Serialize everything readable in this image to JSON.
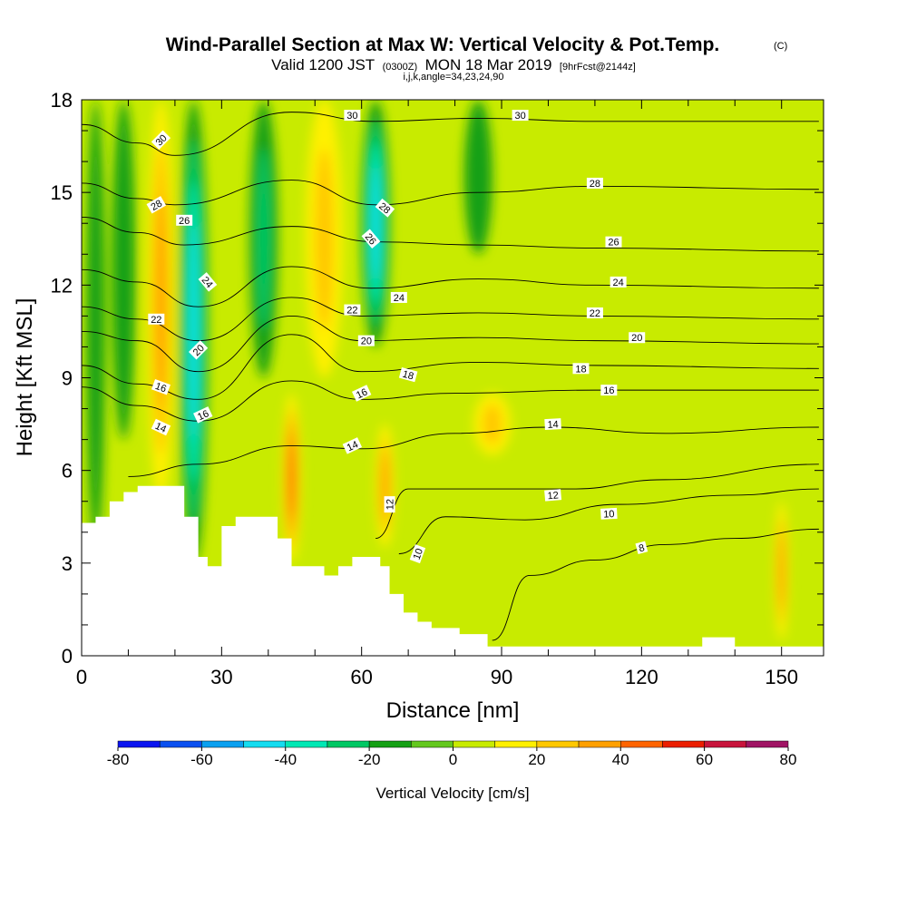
{
  "title": {
    "main": "Wind-Parallel Section at Max W: Vertical Velocity & Pot.Temp.",
    "copyright": "(C)",
    "valid_prefix": "Valid 1200 JST",
    "valid_z": "(0300Z)",
    "valid_date": "MON 18 Mar 2019",
    "forecast": "[9hrFcst@2144z]",
    "indices": "i,j,k,angle=34,23,24,90"
  },
  "colors": {
    "terrain": "#ffffff",
    "contour": "#000000",
    "background": "#ffffff"
  },
  "chart_data": {
    "type": "heatmap",
    "xlabel": "Distance [nm]",
    "ylabel": "Height [Kft MSL]",
    "xlim": [
      0,
      159
    ],
    "ylim": [
      0,
      18
    ],
    "x_ticks": [
      "0",
      "30",
      "60",
      "90",
      "120",
      "150"
    ],
    "y_ticks": [
      "0",
      "3",
      "6",
      "9",
      "12",
      "15",
      "18"
    ],
    "colorbar": {
      "title": "Vertical Velocity [cm/s]",
      "tick_labels": [
        "-80",
        "-60",
        "-40",
        "-20",
        "0",
        "20",
        "40",
        "60",
        "80"
      ],
      "bounds": [
        -80,
        80
      ],
      "bins": [
        {
          "min": -80,
          "max": -70,
          "color": "#0a14f0"
        },
        {
          "min": -70,
          "max": -60,
          "color": "#0a50f0"
        },
        {
          "min": -60,
          "max": -50,
          "color": "#0aa0f0"
        },
        {
          "min": -50,
          "max": -40,
          "color": "#14dcf0"
        },
        {
          "min": -40,
          "max": -30,
          "color": "#00e8b4"
        },
        {
          "min": -30,
          "max": -20,
          "color": "#00c864"
        },
        {
          "min": -20,
          "max": -10,
          "color": "#14a014"
        },
        {
          "min": -10,
          "max": 0,
          "color": "#64c81e"
        },
        {
          "min": 0,
          "max": 10,
          "color": "#c8eb00"
        },
        {
          "min": 10,
          "max": 20,
          "color": "#fff000"
        },
        {
          "min": 20,
          "max": 30,
          "color": "#ffc800"
        },
        {
          "min": 30,
          "max": 40,
          "color": "#ffa000"
        },
        {
          "min": 40,
          "max": 50,
          "color": "#ff6400"
        },
        {
          "min": 50,
          "max": 60,
          "color": "#eb1e00"
        },
        {
          "min": 60,
          "max": 70,
          "color": "#c8143c"
        },
        {
          "min": 70,
          "max": 80,
          "color": "#a01464"
        }
      ]
    },
    "regions": [
      {
        "name": "downdraft-west-1",
        "x": 3,
        "y": [
          3.5,
          18
        ],
        "w": -18,
        "width": 2
      },
      {
        "name": "downdraft-west-2",
        "x": 9,
        "y": [
          7,
          18
        ],
        "w": -16,
        "width": 2.5
      },
      {
        "name": "updraft-west",
        "x": 17,
        "y": [
          5,
          18
        ],
        "w": 32,
        "width": 3
      },
      {
        "name": "downdraft-band-1",
        "x": 24,
        "y": [
          3,
          18
        ],
        "w": -45,
        "width": 3
      },
      {
        "name": "downdraft-band-2",
        "x": 39,
        "y": [
          9,
          18
        ],
        "w": -22,
        "width": 3
      },
      {
        "name": "updraft-mid",
        "x": 52,
        "y": [
          9,
          18
        ],
        "w": 22,
        "width": 4
      },
      {
        "name": "downdraft-band-3",
        "x": 63,
        "y": [
          10,
          18
        ],
        "w": -48,
        "width": 3
      },
      {
        "name": "downdraft-band-4",
        "x": 85,
        "y": [
          13,
          18
        ],
        "w": -15,
        "width": 3
      },
      {
        "name": "updraft-core-1",
        "x": 45,
        "y": [
          3,
          8.5
        ],
        "w": 46,
        "width": 2
      },
      {
        "name": "updraft-core-2",
        "x": 65,
        "y": [
          3.5,
          7.5
        ],
        "w": 38,
        "width": 2
      },
      {
        "name": "updraft-east",
        "x": 150,
        "y": [
          0.5,
          5
        ],
        "w": 35,
        "width": 1.5
      },
      {
        "name": "updraft-wave",
        "x": 88,
        "y": [
          6.5,
          8.5
        ],
        "w": 22,
        "width": 4
      }
    ],
    "contours": [
      {
        "level": 8,
        "points": [
          [
            88,
            0.5
          ],
          [
            96,
            2.6
          ],
          [
            110,
            3.1
          ],
          [
            125,
            3.6
          ],
          [
            140,
            3.8
          ],
          [
            158,
            4.1
          ]
        ]
      },
      {
        "level": 10,
        "points": [
          [
            68,
            3.3
          ],
          [
            78,
            4.5
          ],
          [
            95,
            4.4
          ],
          [
            115,
            4.9
          ],
          [
            140,
            5.2
          ],
          [
            158,
            5.4
          ]
        ]
      },
      {
        "level": 12,
        "points": [
          [
            63,
            3.8
          ],
          [
            70,
            5.4
          ],
          [
            85,
            5.4
          ],
          [
            105,
            5.4
          ],
          [
            125,
            5.7
          ],
          [
            158,
            6.2
          ]
        ]
      },
      {
        "level": 14,
        "points": [
          [
            10,
            5.8
          ],
          [
            25,
            6.2
          ],
          [
            45,
            6.8
          ],
          [
            60,
            6.7
          ],
          [
            80,
            7.2
          ],
          [
            100,
            7.4
          ],
          [
            125,
            7.2
          ],
          [
            158,
            7.4
          ]
        ]
      },
      {
        "level": 16,
        "points": [
          [
            0,
            8.7
          ],
          [
            12,
            8.1
          ],
          [
            25,
            7.6
          ],
          [
            45,
            8.9
          ],
          [
            60,
            8.3
          ],
          [
            80,
            8.5
          ],
          [
            110,
            8.6
          ],
          [
            158,
            8.6
          ]
        ]
      },
      {
        "level": 18,
        "points": [
          [
            0,
            9.4
          ],
          [
            12,
            8.8
          ],
          [
            25,
            8.3
          ],
          [
            45,
            10.4
          ],
          [
            60,
            9.2
          ],
          [
            85,
            9.5
          ],
          [
            110,
            9.4
          ],
          [
            158,
            9.3
          ]
        ]
      },
      {
        "level": 20,
        "points": [
          [
            0,
            10.5
          ],
          [
            12,
            10.2
          ],
          [
            25,
            9.2
          ],
          [
            45,
            11
          ],
          [
            60,
            10.2
          ],
          [
            85,
            10.3
          ],
          [
            110,
            10.2
          ],
          [
            158,
            10.1
          ]
        ]
      },
      {
        "level": 22,
        "points": [
          [
            0,
            11.3
          ],
          [
            12,
            10.9
          ],
          [
            25,
            10.2
          ],
          [
            45,
            11.6
          ],
          [
            60,
            11
          ],
          [
            85,
            11.1
          ],
          [
            110,
            11
          ],
          [
            158,
            10.9
          ]
        ]
      },
      {
        "level": 24,
        "points": [
          [
            0,
            12.5
          ],
          [
            12,
            12.1
          ],
          [
            25,
            11.3
          ],
          [
            45,
            12.6
          ],
          [
            62,
            11.9
          ],
          [
            85,
            12.2
          ],
          [
            110,
            12
          ],
          [
            158,
            11.9
          ]
        ]
      },
      {
        "level": 26,
        "points": [
          [
            0,
            14.2
          ],
          [
            12,
            13.7
          ],
          [
            22,
            13.3
          ],
          [
            45,
            13.9
          ],
          [
            63,
            13.4
          ],
          [
            85,
            13.3
          ],
          [
            110,
            13.2
          ],
          [
            158,
            13.1
          ]
        ]
      },
      {
        "level": 28,
        "points": [
          [
            0,
            15.3
          ],
          [
            12,
            14.8
          ],
          [
            20,
            14.6
          ],
          [
            45,
            15.4
          ],
          [
            63,
            14.6
          ],
          [
            85,
            15
          ],
          [
            110,
            15.2
          ],
          [
            158,
            15.1
          ]
        ]
      },
      {
        "level": 30,
        "points": [
          [
            0,
            17.2
          ],
          [
            12,
            16.6
          ],
          [
            20,
            16.2
          ],
          [
            45,
            17.6
          ],
          [
            63,
            17.3
          ],
          [
            85,
            17.4
          ],
          [
            110,
            17.3
          ],
          [
            158,
            17.3
          ]
        ]
      }
    ],
    "contour_labels": [
      {
        "text": "8",
        "x": 120,
        "y": 3.5,
        "angle": -15
      },
      {
        "text": "10",
        "x": 72,
        "y": 3.3,
        "angle": -70
      },
      {
        "text": "10",
        "x": 113,
        "y": 4.6,
        "angle": -3
      },
      {
        "text": "12",
        "x": 66,
        "y": 4.9,
        "angle": -90
      },
      {
        "text": "12",
        "x": 101,
        "y": 5.2,
        "angle": -5
      },
      {
        "text": "14",
        "x": 17,
        "y": 7.4,
        "angle": 25
      },
      {
        "text": "14",
        "x": 58,
        "y": 6.8,
        "angle": -25
      },
      {
        "text": "14",
        "x": 101,
        "y": 7.5,
        "angle": -3
      },
      {
        "text": "16",
        "x": 17,
        "y": 8.7,
        "angle": 20
      },
      {
        "text": "16",
        "x": 26,
        "y": 7.8,
        "angle": -25
      },
      {
        "text": "16",
        "x": 60,
        "y": 8.5,
        "angle": -25
      },
      {
        "text": "16",
        "x": 113,
        "y": 8.6,
        "angle": 0
      },
      {
        "text": "18",
        "x": 70,
        "y": 9.1,
        "angle": 15
      },
      {
        "text": "18",
        "x": 107,
        "y": 9.3,
        "angle": 0
      },
      {
        "text": "20",
        "x": 25,
        "y": 9.9,
        "angle": -45
      },
      {
        "text": "20",
        "x": 61,
        "y": 10.2,
        "angle": 0
      },
      {
        "text": "20",
        "x": 119,
        "y": 10.3,
        "angle": 0
      },
      {
        "text": "22",
        "x": 16,
        "y": 10.9,
        "angle": 0
      },
      {
        "text": "22",
        "x": 58,
        "y": 11.2,
        "angle": 0
      },
      {
        "text": "22",
        "x": 110,
        "y": 11.1,
        "angle": 0
      },
      {
        "text": "24",
        "x": 27,
        "y": 12.1,
        "angle": 50
      },
      {
        "text": "24",
        "x": 68,
        "y": 11.6,
        "angle": 0
      },
      {
        "text": "24",
        "x": 115,
        "y": 12.1,
        "angle": 0
      },
      {
        "text": "26",
        "x": 22,
        "y": 14.1,
        "angle": 0
      },
      {
        "text": "26",
        "x": 62,
        "y": 13.5,
        "angle": 50
      },
      {
        "text": "26",
        "x": 114,
        "y": 13.4,
        "angle": 0
      },
      {
        "text": "28",
        "x": 16,
        "y": 14.6,
        "angle": -30
      },
      {
        "text": "28",
        "x": 65,
        "y": 14.5,
        "angle": 40
      },
      {
        "text": "28",
        "x": 110,
        "y": 15.3,
        "angle": 0
      },
      {
        "text": "30",
        "x": 17,
        "y": 16.7,
        "angle": -45
      },
      {
        "text": "30",
        "x": 58,
        "y": 17.5,
        "angle": 0
      },
      {
        "text": "30",
        "x": 94,
        "y": 17.5,
        "angle": 0
      }
    ],
    "terrain": [
      [
        0,
        4.3
      ],
      [
        3,
        4.3
      ],
      [
        3,
        4.5
      ],
      [
        6,
        4.5
      ],
      [
        6,
        5
      ],
      [
        9,
        5
      ],
      [
        9,
        5.3
      ],
      [
        12,
        5.3
      ],
      [
        12,
        5.5
      ],
      [
        22,
        5.5
      ],
      [
        22,
        4.5
      ],
      [
        25,
        4.5
      ],
      [
        25,
        3.2
      ],
      [
        27,
        3.2
      ],
      [
        27,
        2.9
      ],
      [
        30,
        2.9
      ],
      [
        30,
        4.2
      ],
      [
        33,
        4.2
      ],
      [
        33,
        4.5
      ],
      [
        42,
        4.5
      ],
      [
        42,
        3.8
      ],
      [
        45,
        3.8
      ],
      [
        45,
        2.9
      ],
      [
        52,
        2.9
      ],
      [
        52,
        2.6
      ],
      [
        55,
        2.6
      ],
      [
        55,
        2.9
      ],
      [
        58,
        2.9
      ],
      [
        58,
        3.2
      ],
      [
        64,
        3.2
      ],
      [
        64,
        2.9
      ],
      [
        66,
        2.9
      ],
      [
        66,
        2
      ],
      [
        69,
        2
      ],
      [
        69,
        1.4
      ],
      [
        72,
        1.4
      ],
      [
        72,
        1.1
      ],
      [
        75,
        1.1
      ],
      [
        75,
        0.9
      ],
      [
        81,
        0.9
      ],
      [
        81,
        0.7
      ],
      [
        87,
        0.7
      ],
      [
        87,
        0.3
      ],
      [
        118,
        0.3
      ],
      [
        118,
        0.3
      ],
      [
        133,
        0.3
      ],
      [
        133,
        0.6
      ],
      [
        140,
        0.6
      ],
      [
        140,
        0.3
      ],
      [
        159,
        0.3
      ],
      [
        159,
        0
      ],
      [
        0,
        0
      ]
    ]
  }
}
